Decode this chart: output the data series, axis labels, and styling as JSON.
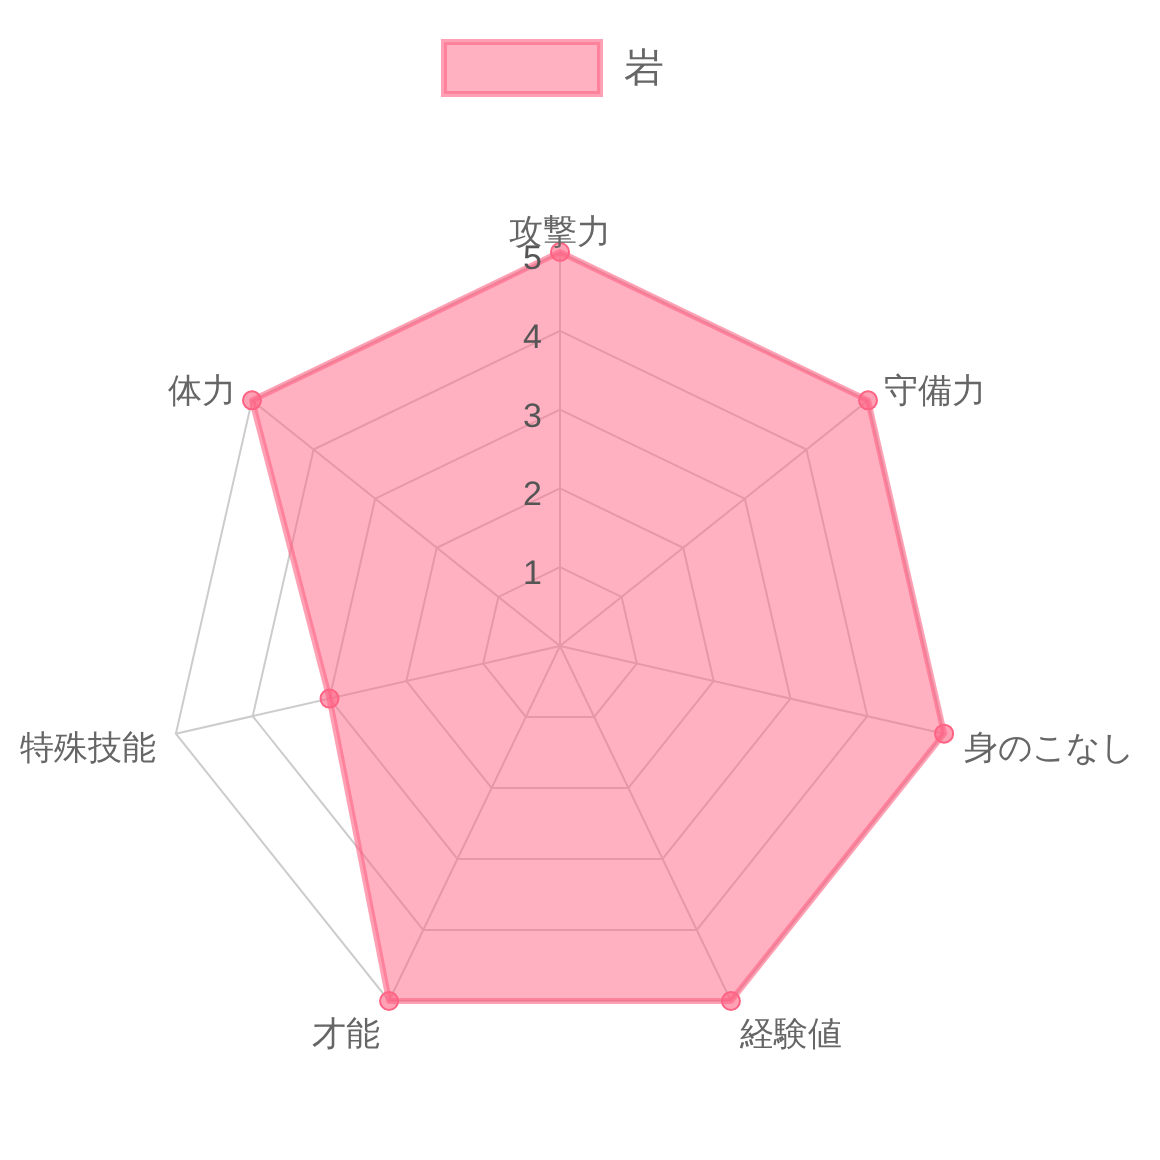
{
  "chart_data": {
    "type": "radar",
    "categories": [
      "攻撃力",
      "守備力",
      "身のこなし",
      "経験値",
      "才能",
      "特殊技能",
      "体力"
    ],
    "series": [
      {
        "name": "岩",
        "color": "#ff6384",
        "values": [
          5,
          5,
          5,
          5,
          5,
          3,
          5
        ]
      }
    ],
    "ylim": [
      0,
      5
    ],
    "yticks": [
      1,
      2,
      3,
      4,
      5
    ],
    "grid": true,
    "legend": "top",
    "marker": "circle"
  }
}
